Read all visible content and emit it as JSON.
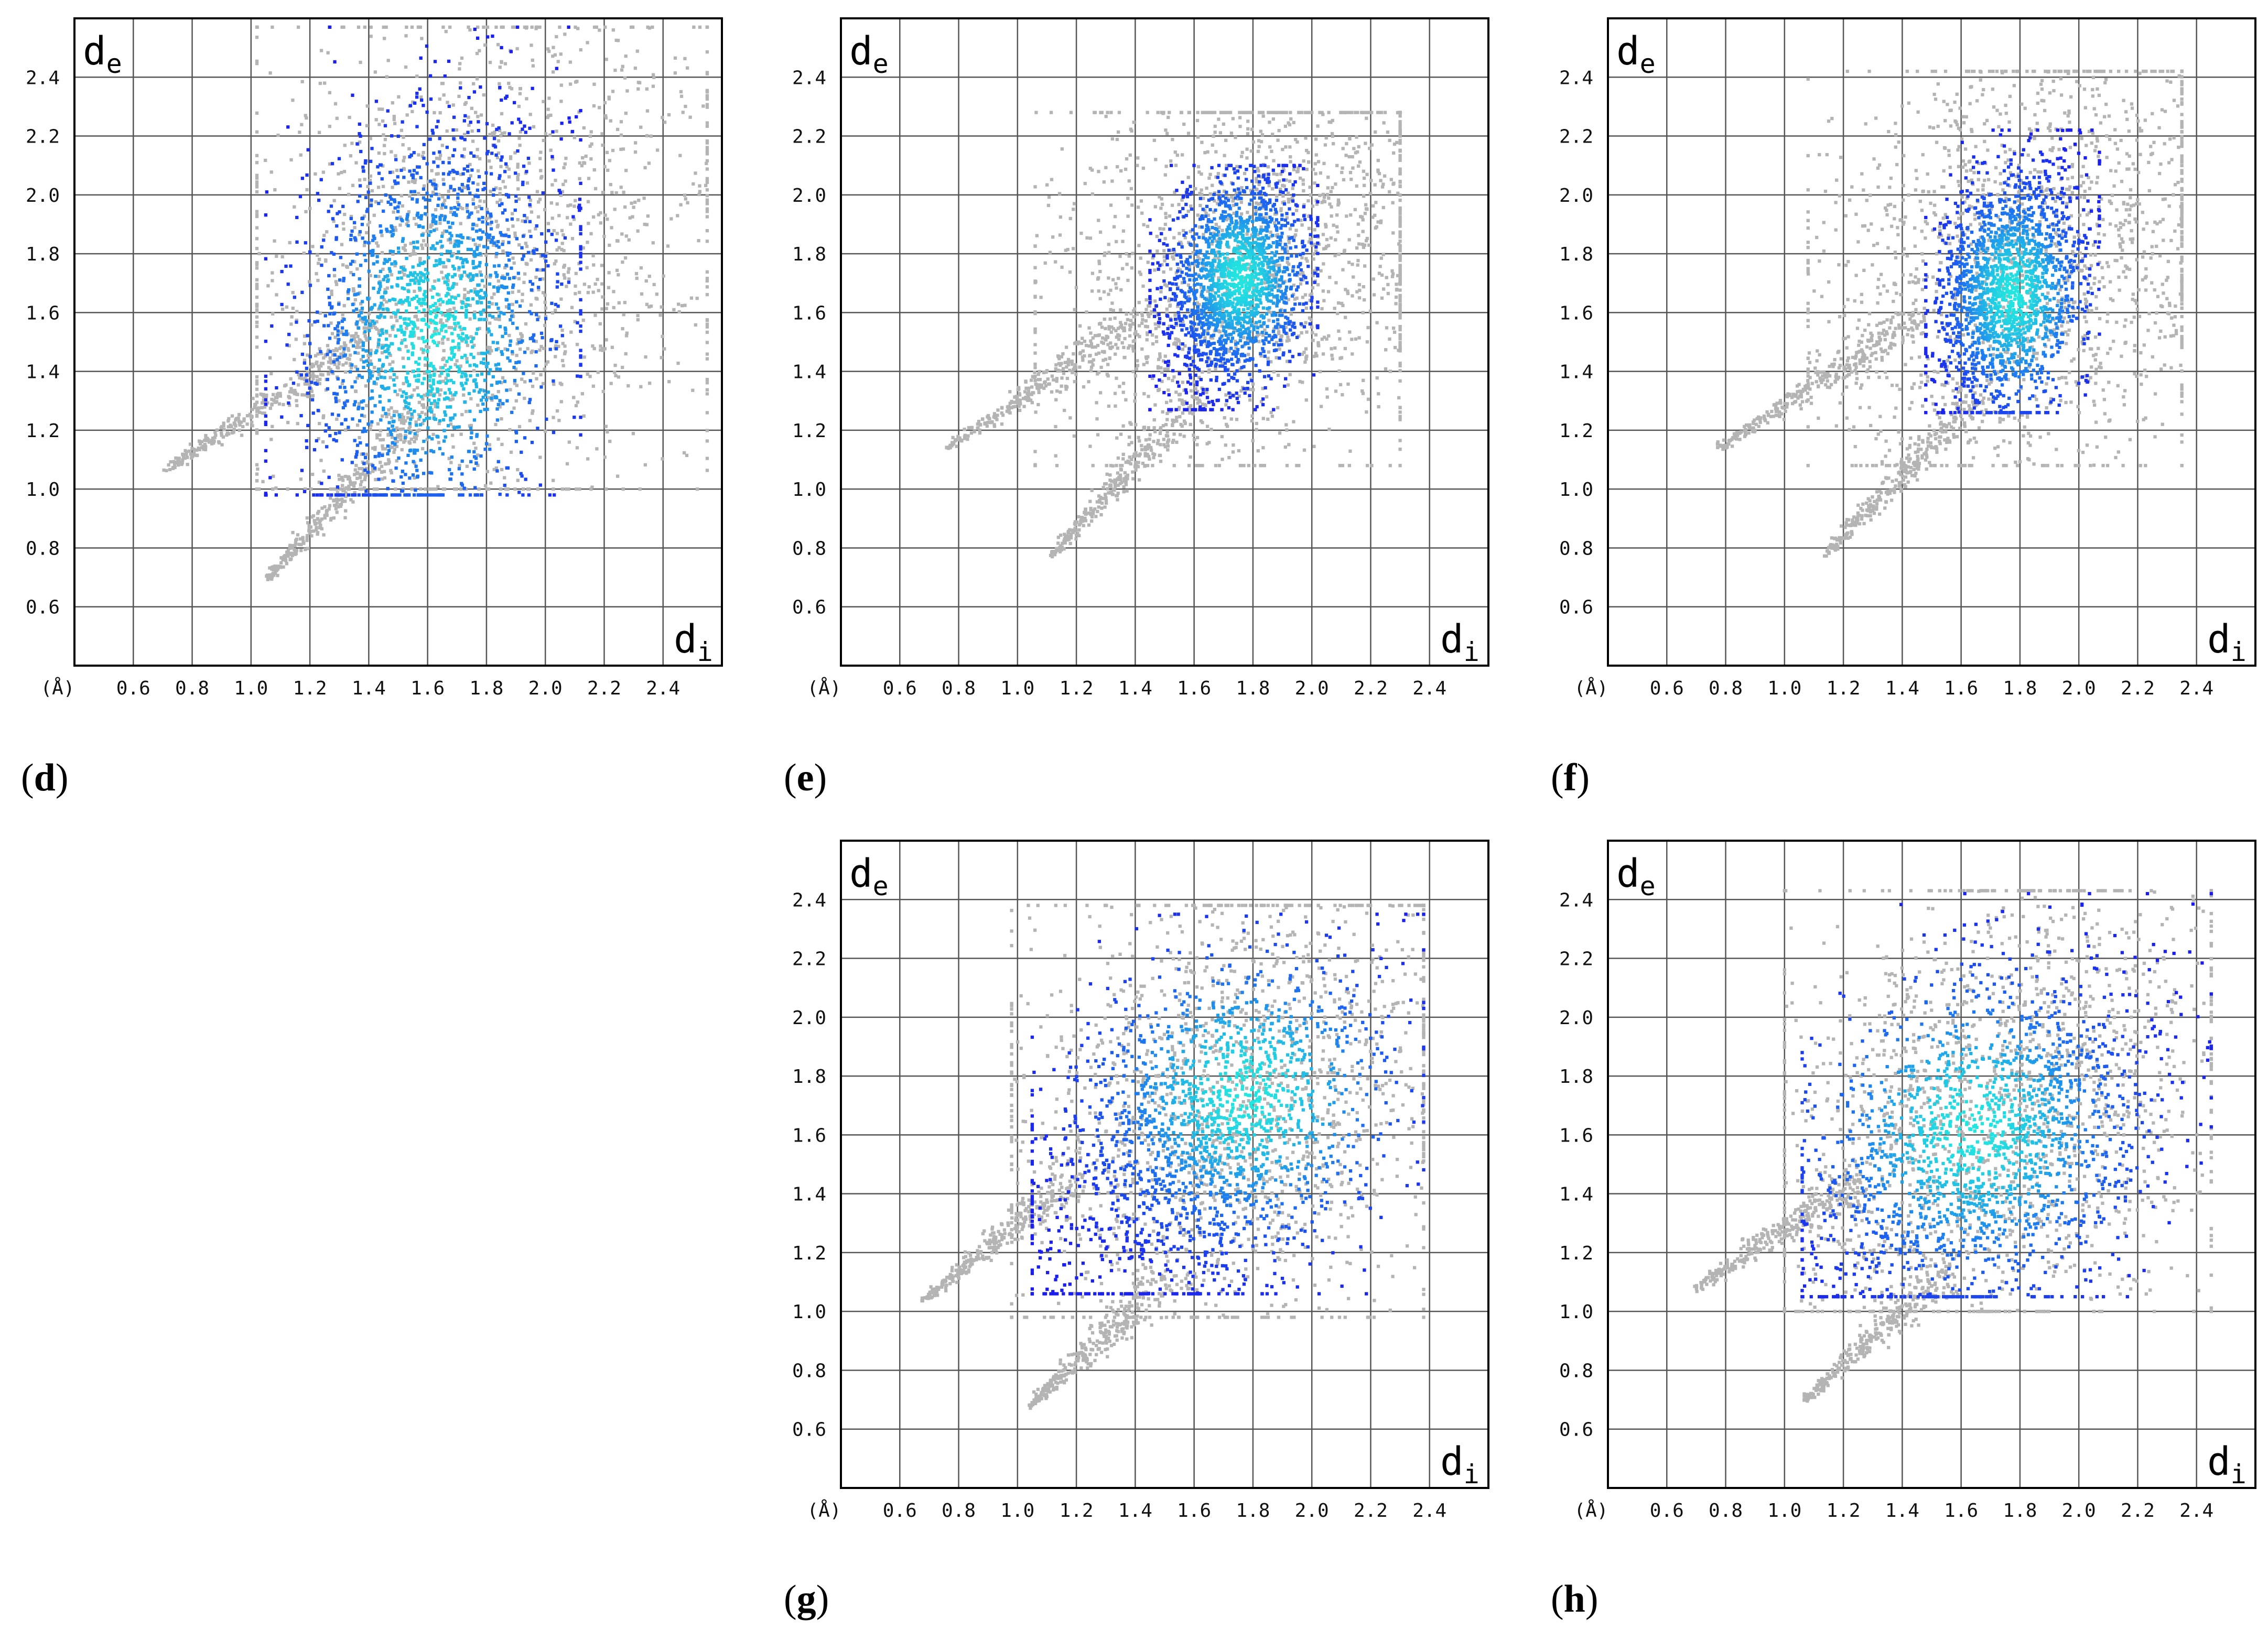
{
  "figure": {
    "unit_label": "(Å)",
    "x_tick_labels": [
      "0.6",
      "0.8",
      "1.0",
      "1.2",
      "1.4",
      "1.6",
      "1.8",
      "2.0",
      "2.2",
      "2.4"
    ],
    "y_tick_labels": [
      "0.6",
      "0.8",
      "1.0",
      "1.2",
      "1.4",
      "1.6",
      "1.8",
      "2.0",
      "2.2",
      "2.4"
    ],
    "x_axis_symbol": "d",
    "x_axis_subscript": "i",
    "y_axis_symbol": "d",
    "y_axis_subscript": "e",
    "colors": {
      "background": "#ffffff",
      "grid": "#555555",
      "full_fingerprint": "#b4b4b4",
      "low_density": "#1a1aee",
      "mid_density": "#1e78f0",
      "high_density": "#22e6e0"
    }
  },
  "chart_data": [
    {
      "type": "heatmap",
      "panel_label": "(d)",
      "xlabel": "d_i",
      "ylabel": "d_e",
      "unit": "Å",
      "xlim": [
        0.4,
        2.6
      ],
      "ylim": [
        0.4,
        2.6
      ],
      "x_ticks": [
        0.6,
        0.8,
        1.0,
        1.2,
        1.4,
        1.6,
        1.8,
        2.0,
        2.2,
        2.4
      ],
      "y_ticks": [
        0.6,
        0.8,
        1.0,
        1.2,
        1.4,
        1.6,
        1.8,
        2.0,
        2.2,
        2.4
      ],
      "grid": true,
      "full_fingerprint_spikes": [
        {
          "from": [
            0.72,
            1.07
          ],
          "to": [
            1.45,
            1.55
          ]
        },
        {
          "from": [
            1.06,
            0.7
          ],
          "to": [
            1.6,
            1.3
          ]
        }
      ],
      "full_fingerprint_region": {
        "di_range": [
          0.72,
          2.55
        ],
        "de_range": [
          0.7,
          2.57
        ],
        "centroid": [
          1.78,
          1.78
        ]
      },
      "highlighted_region": {
        "di_range": [
          1.05,
          2.12
        ],
        "de_range": [
          0.98,
          2.57
        ],
        "centroid": [
          1.62,
          1.58
        ]
      },
      "peak_density": [
        1.62,
        1.52
      ]
    },
    {
      "type": "heatmap",
      "panel_label": "(e)",
      "xlabel": "d_i",
      "ylabel": "d_e",
      "unit": "Å",
      "xlim": [
        0.4,
        2.6
      ],
      "ylim": [
        0.4,
        2.6
      ],
      "x_ticks": [
        0.6,
        0.8,
        1.0,
        1.2,
        1.4,
        1.6,
        1.8,
        2.0,
        2.2,
        2.4
      ],
      "y_ticks": [
        0.6,
        0.8,
        1.0,
        1.2,
        1.4,
        1.6,
        1.8,
        2.0,
        2.2,
        2.4
      ],
      "grid": true,
      "full_fingerprint_spikes": [
        {
          "from": [
            0.76,
            1.14
          ],
          "to": [
            1.45,
            1.6
          ]
        },
        {
          "from": [
            1.12,
            0.78
          ],
          "to": [
            1.62,
            1.32
          ]
        }
      ],
      "full_fingerprint_region": {
        "di_range": [
          0.76,
          2.3
        ],
        "de_range": [
          0.78,
          2.28
        ],
        "centroid": [
          1.8,
          1.78
        ]
      },
      "highlighted_region": {
        "di_range": [
          1.45,
          2.02
        ],
        "de_range": [
          1.27,
          2.1
        ],
        "centroid": [
          1.74,
          1.7
        ]
      },
      "peak_density": [
        1.76,
        1.72
      ]
    },
    {
      "type": "heatmap",
      "panel_label": "(f)",
      "xlabel": "d_i",
      "ylabel": "d_e",
      "unit": "Å",
      "xlim": [
        0.4,
        2.6
      ],
      "ylim": [
        0.4,
        2.6
      ],
      "x_ticks": [
        0.6,
        0.8,
        1.0,
        1.2,
        1.4,
        1.6,
        1.8,
        2.0,
        2.2,
        2.4
      ],
      "y_ticks": [
        0.6,
        0.8,
        1.0,
        1.2,
        1.4,
        1.6,
        1.8,
        2.0,
        2.2,
        2.4
      ],
      "grid": true,
      "full_fingerprint_spikes": [
        {
          "from": [
            0.78,
            1.14
          ],
          "to": [
            1.45,
            1.58
          ]
        },
        {
          "from": [
            1.14,
            0.78
          ],
          "to": [
            1.66,
            1.32
          ]
        }
      ],
      "full_fingerprint_region": {
        "di_range": [
          0.78,
          2.35
        ],
        "de_range": [
          0.78,
          2.42
        ],
        "centroid": [
          1.85,
          1.8
        ]
      },
      "highlighted_region": {
        "di_range": [
          1.48,
          2.07
        ],
        "de_range": [
          1.26,
          2.22
        ],
        "centroid": [
          1.76,
          1.68
        ]
      },
      "peak_density": [
        1.78,
        1.66
      ]
    },
    {
      "type": "heatmap",
      "panel_label": "(g)",
      "xlabel": "d_i",
      "ylabel": "d_e",
      "unit": "Å",
      "xlim": [
        0.4,
        2.6
      ],
      "ylim": [
        0.4,
        2.6
      ],
      "x_ticks": [
        0.6,
        0.8,
        1.0,
        1.2,
        1.4,
        1.6,
        1.8,
        2.0,
        2.2,
        2.4
      ],
      "y_ticks": [
        0.6,
        0.8,
        1.0,
        1.2,
        1.4,
        1.6,
        1.8,
        2.0,
        2.2,
        2.4
      ],
      "grid": true,
      "full_fingerprint_spikes": [
        {
          "from": [
            0.68,
            1.04
          ],
          "to": [
            1.2,
            1.45
          ]
        },
        {
          "from": [
            1.04,
            0.68
          ],
          "to": [
            1.5,
            1.1
          ]
        }
      ],
      "full_fingerprint_region": {
        "di_range": [
          0.68,
          2.38
        ],
        "de_range": [
          0.68,
          2.38
        ],
        "centroid": [
          1.72,
          1.72
        ]
      },
      "highlighted_region": {
        "di_range": [
          1.05,
          2.38
        ],
        "de_range": [
          1.06,
          2.35
        ],
        "centroid": [
          1.65,
          1.6
        ]
      },
      "peak_density": [
        1.78,
        1.74
      ]
    },
    {
      "type": "heatmap",
      "panel_label": "(h)",
      "xlabel": "d_i",
      "ylabel": "d_e",
      "unit": "Å",
      "xlim": [
        0.4,
        2.6
      ],
      "ylim": [
        0.4,
        2.6
      ],
      "x_ticks": [
        0.6,
        0.8,
        1.0,
        1.2,
        1.4,
        1.6,
        1.8,
        2.0,
        2.2,
        2.4
      ],
      "y_ticks": [
        0.6,
        0.8,
        1.0,
        1.2,
        1.4,
        1.6,
        1.8,
        2.0,
        2.2,
        2.4
      ],
      "grid": true,
      "full_fingerprint_spikes": [
        {
          "from": [
            0.7,
            1.08
          ],
          "to": [
            1.25,
            1.45
          ]
        },
        {
          "from": [
            1.07,
            0.7
          ],
          "to": [
            1.55,
            1.15
          ]
        }
      ],
      "full_fingerprint_region": {
        "di_range": [
          0.7,
          2.45
        ],
        "de_range": [
          0.7,
          2.43
        ],
        "centroid": [
          1.72,
          1.72
        ]
      },
      "highlighted_region": {
        "di_range": [
          1.06,
          2.45
        ],
        "de_range": [
          1.05,
          2.42
        ],
        "centroid": [
          1.68,
          1.56
        ]
      },
      "peak_density": [
        1.64,
        1.62
      ]
    }
  ]
}
